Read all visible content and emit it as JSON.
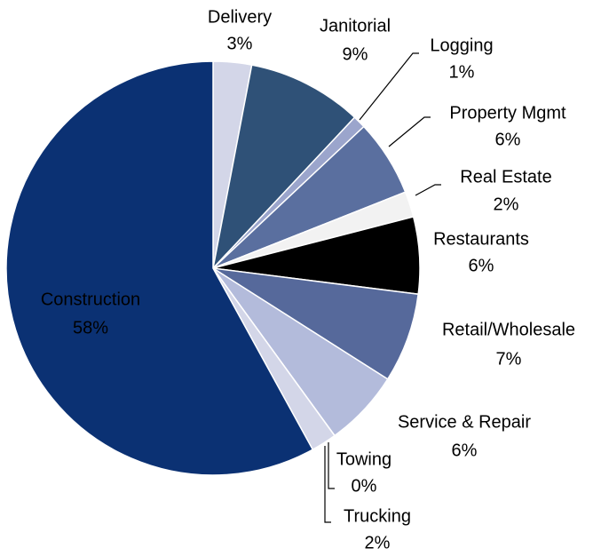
{
  "chart_data": {
    "type": "pie",
    "categories": [
      "Delivery",
      "Janitorial",
      "Logging",
      "Property Mgmt",
      "Real Estate",
      "Restaurants",
      "Retail/Wholesale",
      "Service & Repair",
      "Towing",
      "Trucking",
      "Construction"
    ],
    "values": [
      3,
      9,
      1,
      6,
      2,
      6,
      7,
      6,
      0,
      2,
      58
    ],
    "value_labels": [
      "3%",
      "9%",
      "1%",
      "6%",
      "2%",
      "6%",
      "7%",
      "6%",
      "0%",
      "2%",
      "58%"
    ],
    "colors": [
      "#d3d6e8",
      "#2f5177",
      "#9ba5cc",
      "#5a6f9f",
      "#f2f2f2",
      "#000000",
      "#56699b",
      "#b3bbdb",
      "#d3d6e8",
      "#d3d6e8",
      "#0b3173"
    ]
  }
}
